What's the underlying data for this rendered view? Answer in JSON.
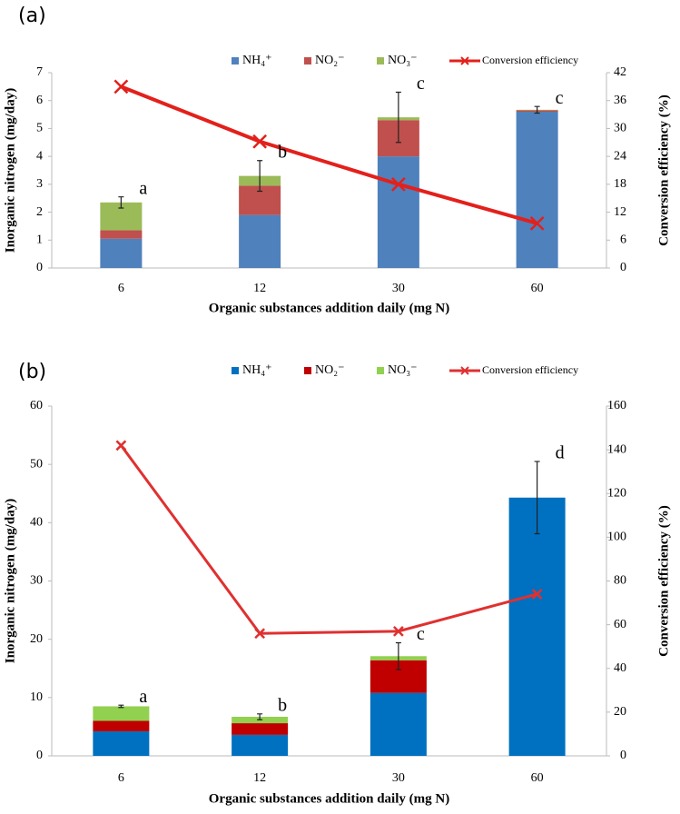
{
  "chart_data": [
    {
      "type": "bar",
      "label": "(a)",
      "x_label": "Organic substances addition daily (mg N)",
      "y_label": "Inorganic nitrogen (mg/day)",
      "y2_label": "Conversion efficiency (%)",
      "categories": [
        "6",
        "12",
        "30",
        "60"
      ],
      "series": [
        {
          "name": "NH₄⁺",
          "color": "#4f81bd",
          "values": [
            1.05,
            1.9,
            4.0,
            5.6
          ]
        },
        {
          "name": "NO₂⁻",
          "color": "#c0504d",
          "values": [
            0.3,
            1.05,
            1.3,
            0.05
          ]
        },
        {
          "name": "NO₃⁻",
          "color": "#9bbb59",
          "values": [
            1.0,
            0.35,
            0.1,
            0.02
          ],
          "errors": [
            0.2,
            0.55,
            0.9,
            0.12
          ]
        },
        {
          "name": "Conversion efficiency",
          "color": "#e3201b",
          "type": "line",
          "axis": "y2",
          "values": [
            39,
            27.2,
            18,
            9.6
          ]
        }
      ],
      "annotations": [
        "a",
        "b",
        "c",
        "c"
      ],
      "ylim": [
        0,
        7
      ],
      "yticks": [
        0,
        1,
        2,
        3,
        4,
        5,
        6,
        7
      ],
      "y2lim": [
        0,
        42
      ],
      "y2ticks": [
        0,
        6,
        12,
        18,
        24,
        30,
        36,
        42
      ]
    },
    {
      "type": "bar",
      "label": "(b)",
      "x_label": "Organic substances addition daily (mg N)",
      "y_label": "Inorganic nitrogen (mg/day)",
      "y2_label": "Conversion efficiency (%)",
      "categories": [
        "6",
        "12",
        "30",
        "60"
      ],
      "series": [
        {
          "name": "NH₄⁺",
          "color": "#0070c0",
          "values": [
            4.2,
            3.6,
            10.8,
            44.3
          ]
        },
        {
          "name": "NO₂⁻",
          "color": "#c00000",
          "values": [
            1.8,
            2.0,
            5.6,
            0
          ]
        },
        {
          "name": "NO₃⁻",
          "color": "#92d050",
          "values": [
            2.5,
            1.1,
            0.7,
            0
          ],
          "errors": [
            0.2,
            0.5,
            2.3,
            6.2
          ]
        },
        {
          "name": "Conversion efficiency",
          "color": "#e03030",
          "type": "line",
          "axis": "y2",
          "values": [
            142,
            56,
            57,
            74
          ]
        }
      ],
      "annotations": [
        "a",
        "b",
        "c",
        "d"
      ],
      "ylim": [
        0,
        60
      ],
      "yticks": [
        0,
        10,
        20,
        30,
        40,
        50,
        60
      ],
      "y2lim": [
        0,
        160
      ],
      "y2ticks": [
        0,
        20,
        40,
        60,
        80,
        100,
        120,
        140,
        160
      ]
    }
  ]
}
